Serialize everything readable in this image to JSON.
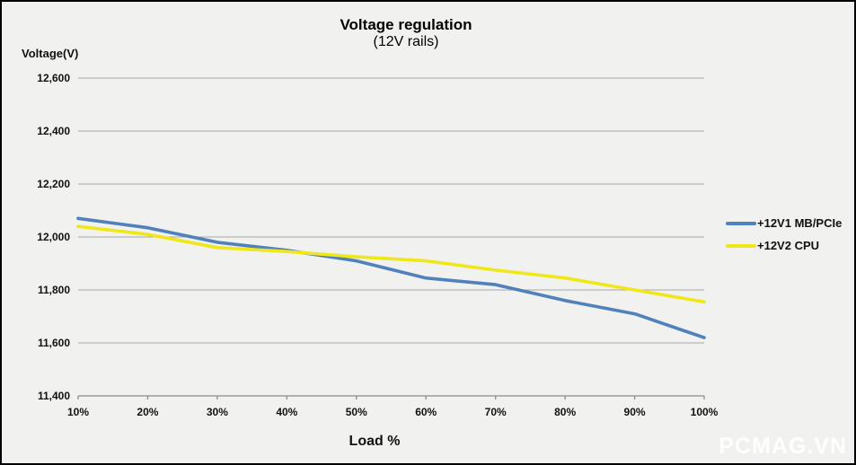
{
  "page": {
    "background": "#f1f1f0",
    "border_color": "#000000",
    "watermark": "PCMAG.VN"
  },
  "chart_data": {
    "type": "line",
    "title": "Voltage regulation",
    "subtitle": "(12V rails)",
    "y_axis_label": "Voltage(V)",
    "x_axis_label": "Load %",
    "categories": [
      "10%",
      "20%",
      "30%",
      "40%",
      "50%",
      "60%",
      "70%",
      "80%",
      "90%",
      "100%"
    ],
    "y_ticks": [
      "12,600",
      "12,400",
      "12,200",
      "12,000",
      "11,800",
      "11,600",
      "11,400"
    ],
    "ylim": [
      11400,
      12600
    ],
    "grid": true,
    "legend_position": "right",
    "colors": {
      "gridline": "#a8a8a8",
      "axis": "#8c8c8c",
      "series1": "#4f81bd",
      "series2": "#f0e71a"
    },
    "series": [
      {
        "name": "+12V1 MB/PCIe",
        "color": "#4f81bd",
        "values": [
          12070,
          12035,
          11980,
          11950,
          11910,
          11845,
          11820,
          11760,
          11710,
          11620
        ]
      },
      {
        "name": "+12V2 CPU",
        "color": "#f0e71a",
        "values": [
          12040,
          12010,
          11960,
          11945,
          11925,
          11910,
          11875,
          11845,
          11800,
          11755
        ]
      }
    ]
  }
}
